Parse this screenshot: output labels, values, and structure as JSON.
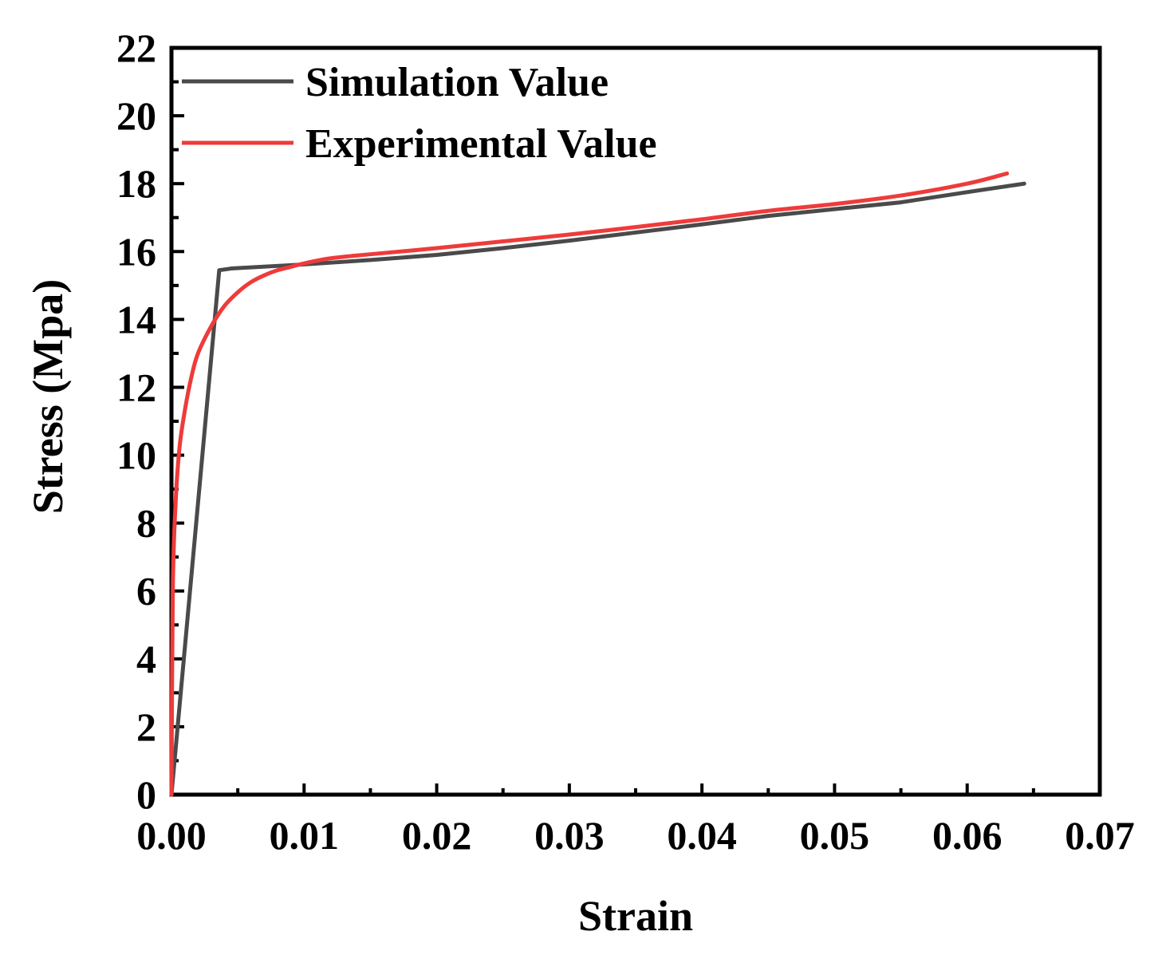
{
  "chart_data": {
    "type": "line",
    "title": "",
    "xlabel": "Strain",
    "ylabel": "Stress (Mpa)",
    "xlim": [
      0,
      0.07
    ],
    "ylim": [
      0,
      22
    ],
    "xticks": [
      0.0,
      0.01,
      0.02,
      0.03,
      0.04,
      0.05,
      0.06,
      0.07
    ],
    "xtick_labels": [
      "0.00",
      "0.01",
      "0.02",
      "0.03",
      "0.04",
      "0.05",
      "0.06",
      "0.07"
    ],
    "yticks": [
      0,
      2,
      4,
      6,
      8,
      10,
      12,
      14,
      16,
      18,
      20,
      22
    ],
    "ytick_labels": [
      "0",
      "2",
      "4",
      "6",
      "8",
      "10",
      "12",
      "14",
      "16",
      "18",
      "20",
      "22"
    ],
    "grid": false,
    "legend_position": "top-left",
    "series": [
      {
        "name": "Simulation Value",
        "color": "#4a4a4a",
        "x": [
          0.0,
          0.0036,
          0.0045,
          0.01,
          0.015,
          0.02,
          0.025,
          0.03,
          0.035,
          0.04,
          0.045,
          0.05,
          0.055,
          0.06,
          0.0643
        ],
        "y": [
          0.0,
          15.45,
          15.5,
          15.62,
          15.75,
          15.9,
          16.1,
          16.32,
          16.56,
          16.8,
          17.05,
          17.25,
          17.45,
          17.75,
          18.0
        ]
      },
      {
        "name": "Experimental Value",
        "color": "#ee3b3b",
        "x": [
          0.0,
          0.0001,
          0.0003,
          0.0006,
          0.001,
          0.0015,
          0.002,
          0.003,
          0.004,
          0.005,
          0.006,
          0.007,
          0.008,
          0.009,
          0.01,
          0.012,
          0.015,
          0.02,
          0.025,
          0.03,
          0.035,
          0.04,
          0.045,
          0.05,
          0.055,
          0.06,
          0.063
        ],
        "y": [
          0.0,
          6.0,
          8.5,
          10.2,
          11.3,
          12.3,
          13.0,
          13.8,
          14.4,
          14.8,
          15.1,
          15.3,
          15.45,
          15.55,
          15.65,
          15.8,
          15.92,
          16.1,
          16.3,
          16.5,
          16.72,
          16.95,
          17.2,
          17.4,
          17.65,
          18.0,
          18.3
        ]
      }
    ]
  }
}
